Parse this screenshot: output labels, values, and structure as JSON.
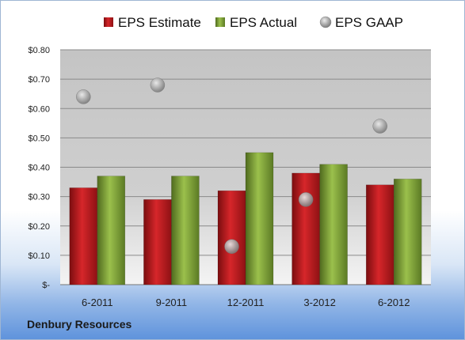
{
  "chart_data": {
    "type": "bar",
    "categories": [
      "6-2011",
      "9-2011",
      "12-2011",
      "3-2012",
      "6-2012"
    ],
    "series": [
      {
        "name": "EPS Estimate",
        "kind": "bar",
        "color": "#c0181c",
        "values": [
          0.33,
          0.29,
          0.32,
          0.38,
          0.34
        ]
      },
      {
        "name": "EPS Actual",
        "kind": "bar",
        "color": "#84a83a",
        "values": [
          0.37,
          0.37,
          0.45,
          0.41,
          0.36
        ]
      },
      {
        "name": "EPS GAAP",
        "kind": "scatter",
        "color": "#a0a0a0",
        "values": [
          0.64,
          0.68,
          0.13,
          0.29,
          0.54
        ]
      }
    ],
    "yticks": [
      "$-",
      "$0.10",
      "$0.20",
      "$0.30",
      "$0.40",
      "$0.50",
      "$0.60",
      "$0.70",
      "$0.80"
    ],
    "ylim": [
      0,
      0.8
    ],
    "grid": true,
    "legend": "top"
  },
  "footer": {
    "company": "Denbury Resources"
  }
}
